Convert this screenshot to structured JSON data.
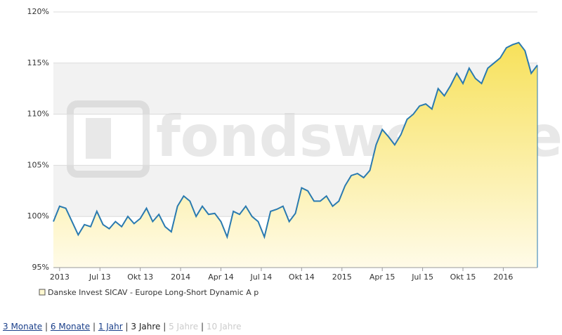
{
  "chart_data": {
    "type": "area",
    "watermark": "fondsweb.de",
    "x": [
      0,
      2,
      4,
      6,
      8,
      10,
      12,
      14,
      16,
      18,
      20,
      22,
      24,
      26,
      28,
      30,
      32,
      34,
      36,
      38,
      40,
      42,
      44,
      46,
      48,
      50,
      52,
      54,
      56,
      58,
      60,
      62,
      64,
      66,
      68,
      70,
      72,
      74,
      76,
      78,
      80,
      82,
      84,
      86,
      88,
      90,
      92,
      94,
      96,
      98,
      100,
      102,
      104,
      106,
      108,
      110,
      112,
      114,
      116,
      118,
      120,
      122,
      124,
      126,
      128,
      130,
      132,
      134,
      136,
      138,
      140,
      142,
      144,
      146,
      148,
      150,
      152,
      154,
      156
    ],
    "series": [
      {
        "name": "Danske Invest SICAV - Europe Long-Short Dynamic A p",
        "color": "#2a7ab0",
        "values": [
          99.5,
          101,
          100.8,
          99.5,
          98.2,
          99.2,
          99,
          100.5,
          99.2,
          98.8,
          99.5,
          99,
          100,
          99.3,
          99.8,
          100.8,
          99.5,
          100.2,
          99,
          98.5,
          101,
          102,
          101.5,
          100,
          101,
          100.2,
          100.3,
          99.5,
          98,
          100.5,
          100.2,
          101,
          100,
          99.5,
          98,
          100.5,
          100.7,
          101,
          99.5,
          100.3,
          102.8,
          102.5,
          101.5,
          101.5,
          102,
          101,
          101.5,
          103,
          104,
          104.2,
          103.8,
          104.5,
          107,
          108.5,
          107.8,
          107,
          108,
          109.5,
          110,
          110.8,
          111,
          110.5,
          112.5,
          111.8,
          112.8,
          114,
          113,
          114.5,
          113.5,
          113,
          114.5,
          115,
          115.5,
          116.5,
          116.8,
          117,
          116.2,
          114,
          114.8
        ]
      }
    ],
    "xlim": [
      0,
      156
    ],
    "xticks": [
      {
        "value": 2,
        "label": "2013"
      },
      {
        "value": 15,
        "label": "Jul 13"
      },
      {
        "value": 28,
        "label": "Okt 13"
      },
      {
        "value": 41,
        "label": "2014"
      },
      {
        "value": 54,
        "label": "Apr 14"
      },
      {
        "value": 67,
        "label": "Jul 14"
      },
      {
        "value": 80,
        "label": "Okt 14"
      },
      {
        "value": 93,
        "label": "2015"
      },
      {
        "value": 106,
        "label": "Apr 15"
      },
      {
        "value": 119,
        "label": "Jul 15"
      },
      {
        "value": 132,
        "label": "Okt 15"
      },
      {
        "value": 145,
        "label": "2016"
      }
    ],
    "ylim": [
      95,
      120
    ],
    "yticks": [
      {
        "value": 95,
        "label": "95%"
      },
      {
        "value": 100,
        "label": "100%"
      },
      {
        "value": 105,
        "label": "105%"
      },
      {
        "value": 110,
        "label": "110%"
      },
      {
        "value": 115,
        "label": "115%"
      },
      {
        "value": 120,
        "label": "120%"
      }
    ],
    "grid": true
  },
  "nav": {
    "separator": "|",
    "items": [
      {
        "label": "3 Monate",
        "state": "link"
      },
      {
        "label": "6 Monate",
        "state": "link"
      },
      {
        "label": "1 Jahr",
        "state": "link"
      },
      {
        "label": "3 Jahre",
        "state": "active"
      },
      {
        "label": "5 Jahre",
        "state": "disabled"
      },
      {
        "label": "10 Jahre",
        "state": "disabled"
      }
    ]
  }
}
